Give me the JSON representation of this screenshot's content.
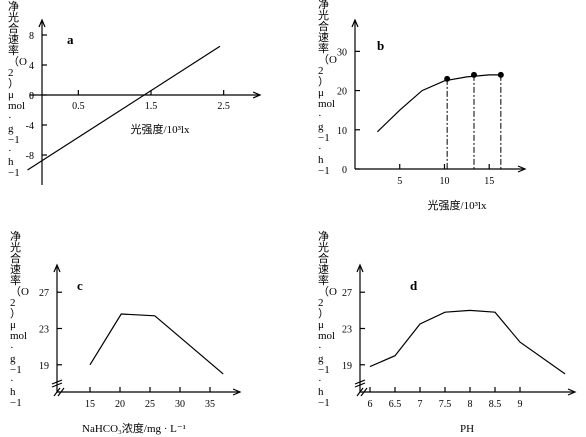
{
  "panels": {
    "a": {
      "label": "a",
      "ylabel": [
        "净",
        "光",
        "合",
        "速",
        "率",
        "（O",
        "2",
        "）",
        "μ",
        "mol",
        "·",
        "g",
        "−1",
        "·",
        "h",
        "−1"
      ],
      "xlabel": "光强度/10³lx"
    },
    "b": {
      "label": "b",
      "ylabel": [
        "净",
        "光",
        "合",
        "速",
        "率",
        "（O",
        "2",
        "）",
        "μ",
        "mol",
        "·",
        "g",
        "−1",
        "·",
        "h",
        "−1"
      ],
      "xlabel": "光强度/10³lx"
    },
    "c": {
      "label": "c",
      "ylabel": [
        "净",
        "光",
        "合",
        "速",
        "率",
        "（O",
        "2",
        "）",
        "μ",
        "mol",
        "·",
        "g",
        "−1",
        "·",
        "h",
        "−1"
      ],
      "xlabel": "NaHCO₃浓度/mg · L⁻¹"
    },
    "d": {
      "label": "d",
      "ylabel": [
        "净",
        "光",
        "合",
        "速",
        "率",
        "（O",
        "2",
        "）",
        "μ",
        "mol",
        "·",
        "g",
        "−1",
        "·",
        "h",
        "−1"
      ],
      "xlabel": "PH"
    }
  },
  "chart_data": [
    {
      "id": "a",
      "type": "line",
      "title": "a",
      "xlabel": "光强度/10³lx",
      "ylabel": "净光合速率（O2）μmol·g−1·h−1",
      "xticks": [
        0.5,
        1.5,
        2.5
      ],
      "yticks": [
        8,
        4,
        0,
        -4,
        -8
      ],
      "ylim": [
        -12,
        10
      ],
      "xlim": [
        0,
        3
      ],
      "series": [
        {
          "x": [
            -0.2,
            2.45
          ],
          "y": [
            -10,
            6.5
          ]
        }
      ]
    },
    {
      "id": "b",
      "type": "line",
      "title": "b",
      "xlabel": "光强度/10³lx",
      "ylabel": "净光合速率（O2）μmol·g−1·h−1",
      "xticks": [
        5,
        10,
        15
      ],
      "yticks": [
        0,
        10,
        20,
        30
      ],
      "ylim": [
        0,
        38
      ],
      "xlim": [
        0,
        19
      ],
      "series": [
        {
          "x": [
            2.5,
            5,
            7.5,
            10,
            12.5,
            15,
            16.3
          ],
          "y": [
            9.5,
            15,
            20,
            22.5,
            23.5,
            24,
            24
          ]
        }
      ],
      "markers": [
        {
          "x": 10.3,
          "y": 23
        },
        {
          "x": 13.3,
          "y": 24
        },
        {
          "x": 16.3,
          "y": 24
        }
      ]
    },
    {
      "id": "c",
      "type": "line",
      "title": "c",
      "xlabel": "NaHCO₃浓度/mg · L⁻¹",
      "ylabel": "净光合速率（O2）μmol·g−1·h−1",
      "xticks": [
        15,
        20,
        25,
        30,
        35
      ],
      "yticks": [
        19,
        23,
        27
      ],
      "ylim": [
        16,
        30
      ],
      "xlim": [
        9.5,
        40
      ],
      "axis_break": true,
      "series": [
        {
          "x": [
            15,
            20.2,
            25.8,
            37.2
          ],
          "y": [
            19,
            24.6,
            24.4,
            18
          ]
        }
      ]
    },
    {
      "id": "d",
      "type": "line",
      "title": "d",
      "xlabel": "PH",
      "ylabel": "净光合速率（O2）μmol·g−1·h−1",
      "xticks": [
        6,
        6.5,
        7,
        7.5,
        8,
        8.5,
        9
      ],
      "yticks": [
        19,
        23,
        27
      ],
      "ylim": [
        16,
        30
      ],
      "xlim": [
        5.8,
        10.1
      ],
      "axis_break": true,
      "series": [
        {
          "x": [
            6,
            6.5,
            7,
            7.5,
            8,
            8.5,
            9,
            9.9
          ],
          "y": [
            18.8,
            20,
            23.5,
            24.8,
            25,
            24.8,
            21.5,
            18
          ]
        }
      ]
    }
  ]
}
